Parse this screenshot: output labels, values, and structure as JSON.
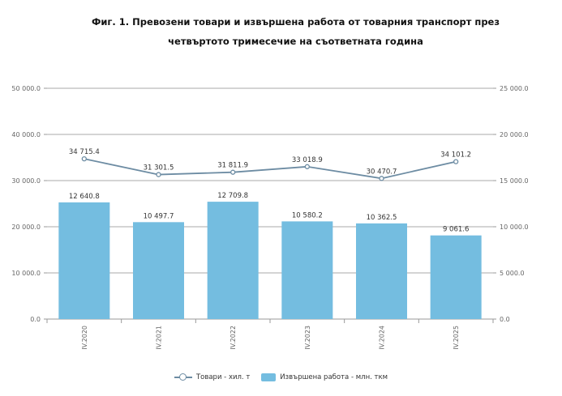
{
  "chart_data": {
    "type": "bar",
    "title": "Фиг. 1. Превозени товари и извършена работа от товарния транспорт през",
    "subtitle": "четвъртото тримесечие на съответната година",
    "categories": [
      "IV.2020",
      "IV.2021",
      "IV.2022",
      "IV.2023",
      "IV.2024",
      "IV.2025"
    ],
    "left_axis": {
      "ylim": [
        0,
        50000
      ],
      "ticks": [
        0,
        10000,
        20000,
        30000,
        40000,
        50000
      ],
      "tick_labels": [
        "0.0",
        "10 000.0",
        "20 000.0",
        "30 000.0",
        "40 000.0",
        "50 000.0"
      ]
    },
    "right_axis": {
      "ylim": [
        0,
        25000
      ],
      "ticks": [
        0,
        5000,
        10000,
        15000,
        20000,
        25000
      ],
      "tick_labels": [
        "0.0",
        "5 000.0",
        "10 000.0",
        "15 000.0",
        "20 000.0",
        "25 000.0"
      ]
    },
    "series": [
      {
        "name": "Товари - хил. т",
        "type": "line",
        "axis": "left",
        "color": "#6d8ca3",
        "values": [
          34715.4,
          31301.5,
          31811.9,
          33018.9,
          30470.7,
          34101.2
        ],
        "labels": [
          "34 715.4",
          "31 301.5",
          "31 811.9",
          "33 018.9",
          "30 470.7",
          "34 101.2"
        ]
      },
      {
        "name": "Извършена работа - млн. ткм",
        "type": "bar",
        "axis": "right",
        "color": "#74bde0",
        "values": [
          12640.8,
          10497.7,
          12709.8,
          10580.2,
          10362.5,
          9061.6
        ],
        "labels": [
          "12 640.8",
          "10 497.7",
          "12 709.8",
          "10 580.2",
          "10 362.5",
          "9 061.6"
        ]
      }
    ],
    "grid": true,
    "legend": "bottom-center"
  }
}
